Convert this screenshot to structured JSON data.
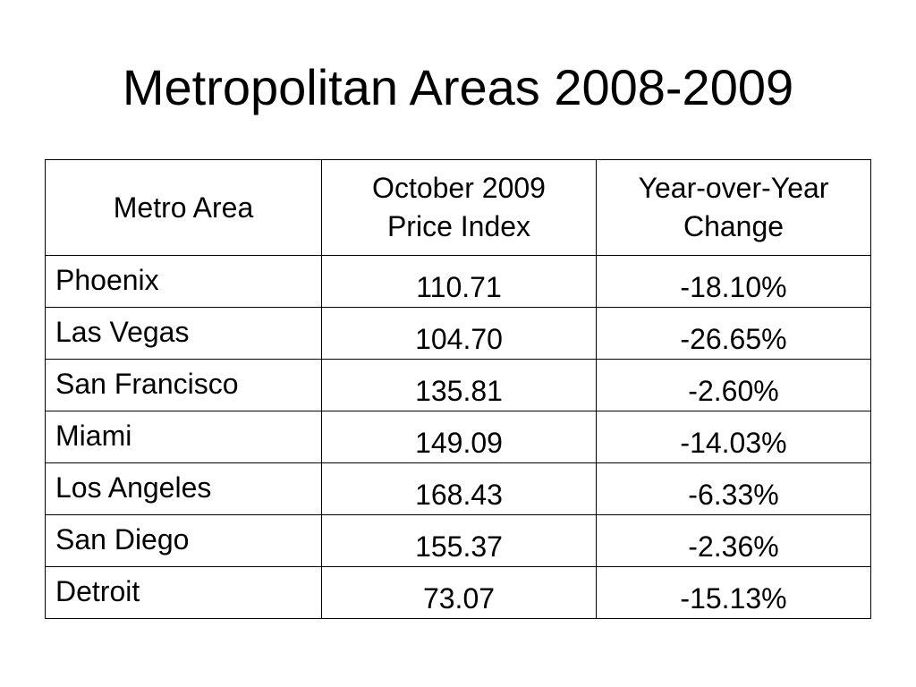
{
  "slide": {
    "title": "Metropolitan Areas 2008-2009"
  },
  "table": {
    "headers": {
      "metro_area": "Metro Area",
      "price_index_line1": "October 2009",
      "price_index_line2": "Price Index",
      "yoy_change_line1": "Year-over-Year",
      "yoy_change_line2": "Change"
    },
    "rows": [
      {
        "metro": "Phoenix",
        "price_index": "110.71",
        "yoy_change": "-18.10%"
      },
      {
        "metro": "Las Vegas",
        "price_index": "104.70",
        "yoy_change": "-26.65%"
      },
      {
        "metro": "San Francisco",
        "price_index": "135.81",
        "yoy_change": "-2.60%"
      },
      {
        "metro": "Miami",
        "price_index": "149.09",
        "yoy_change": "-14.03%"
      },
      {
        "metro": "Los Angeles",
        "price_index": "168.43",
        "yoy_change": "-6.33%"
      },
      {
        "metro": "San Diego",
        "price_index": "155.37",
        "yoy_change": "-2.36%"
      },
      {
        "metro": "Detroit",
        "price_index": "73.07",
        "yoy_change": "-15.13%"
      }
    ]
  }
}
